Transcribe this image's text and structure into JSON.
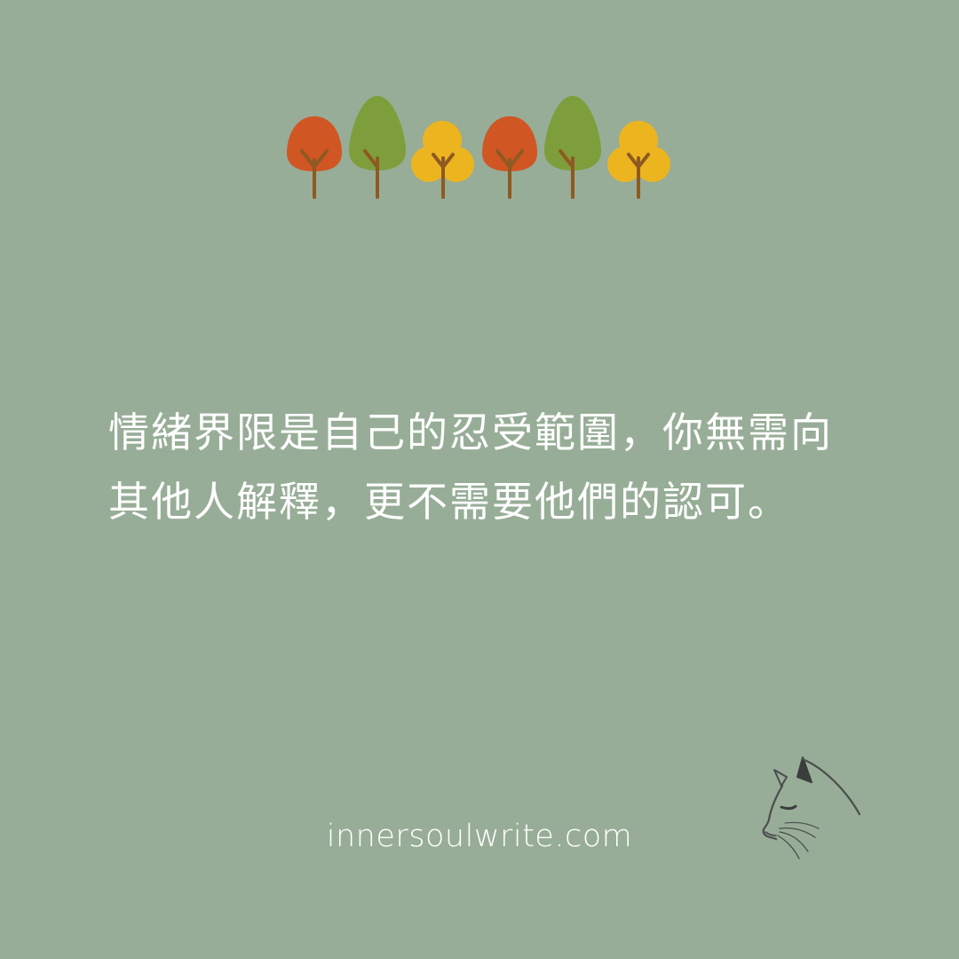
{
  "colors": {
    "background": "#97ad97",
    "text": "#ffffff",
    "tree_orange": "#d05624",
    "tree_green": "#7e9e3c",
    "tree_yellow": "#ecb520",
    "trunk": "#8e5a21",
    "cat_line": "#4a4d4d",
    "cat_ear": "#3b3d3d"
  },
  "decoration": {
    "trees": [
      "tree-orange-icon",
      "tree-green-icon",
      "tree-yellow-icon",
      "tree-orange-icon",
      "tree-green-icon",
      "tree-yellow-icon"
    ],
    "cat": "cat-line-art-icon"
  },
  "quote": {
    "text": "情緒界限是自己的忍受範圍，你無需向其他人解釋，更不需要他們的認可。"
  },
  "footer": {
    "website": "innersoulwrite.com"
  }
}
